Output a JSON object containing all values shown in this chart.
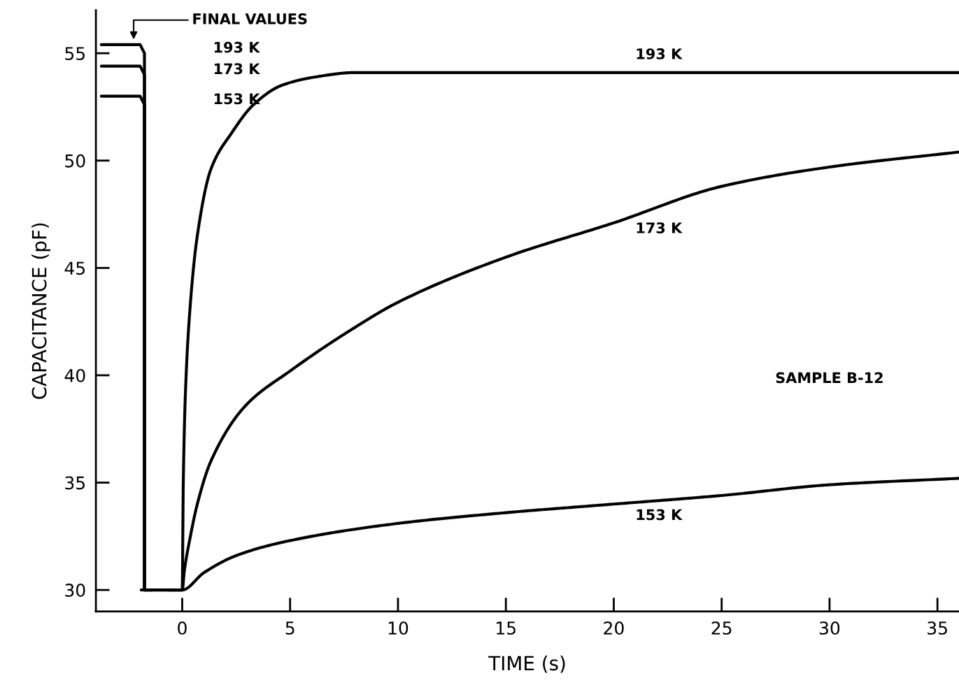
{
  "chart_data": {
    "type": "line",
    "xlabel": "TIME (s)",
    "ylabel": "CAPACITANCE (pF)",
    "xlim": [
      -4,
      36
    ],
    "ylim": [
      29,
      57
    ],
    "xticks": [
      0,
      5,
      10,
      15,
      20,
      25,
      30,
      35
    ],
    "yticks": [
      30,
      35,
      40,
      45,
      50,
      55
    ],
    "grid": false,
    "legend": false,
    "marker": "none",
    "line_style": "solid",
    "series": [
      {
        "name": "193 K",
        "color": "#000000",
        "x": [
          -3.75,
          -1.95,
          -1.75,
          -1.75,
          -1.9,
          -1.4,
          null,
          -0.7,
          0,
          0.05,
          0.15,
          0.36,
          0.7,
          1.33,
          2.3,
          3.3,
          4.6,
          6.2,
          8,
          12,
          20,
          30,
          36
        ],
        "values": [
          55.4,
          55.4,
          55.0,
          30.0,
          30.0,
          30.0,
          null,
          30.0,
          30.0,
          35.0,
          39.2,
          43.1,
          46.5,
          49.6,
          51.3,
          52.6,
          53.5,
          53.9,
          54.1,
          54.1,
          54.1,
          54.1,
          54.1
        ]
      },
      {
        "name": "173 K",
        "color": "#000000",
        "x": [
          -3.75,
          -1.95,
          -1.75,
          -1.75,
          0,
          0.1,
          0.36,
          0.7,
          1.33,
          2.95,
          5,
          7.8,
          10,
          15,
          20,
          25,
          30,
          36
        ],
        "values": [
          54.4,
          54.4,
          54.0,
          30.0,
          30.0,
          30.9,
          32.4,
          34.0,
          36.0,
          38.6,
          40.2,
          42.1,
          43.4,
          45.5,
          47.1,
          48.8,
          49.7,
          50.4
        ]
      },
      {
        "name": "153 K",
        "color": "#000000",
        "x": [
          -3.75,
          -1.95,
          -1.75,
          -1.75,
          0,
          1,
          2.5,
          5,
          10,
          15,
          20,
          25,
          30,
          36
        ],
        "values": [
          53.0,
          53.0,
          52.6,
          30.0,
          30.0,
          30.8,
          31.6,
          32.3,
          33.1,
          33.6,
          34.0,
          34.4,
          34.9,
          35.2
        ]
      }
    ],
    "annotations": [
      "FINAL VALUES",
      "SAMPLE B-12"
    ]
  }
}
